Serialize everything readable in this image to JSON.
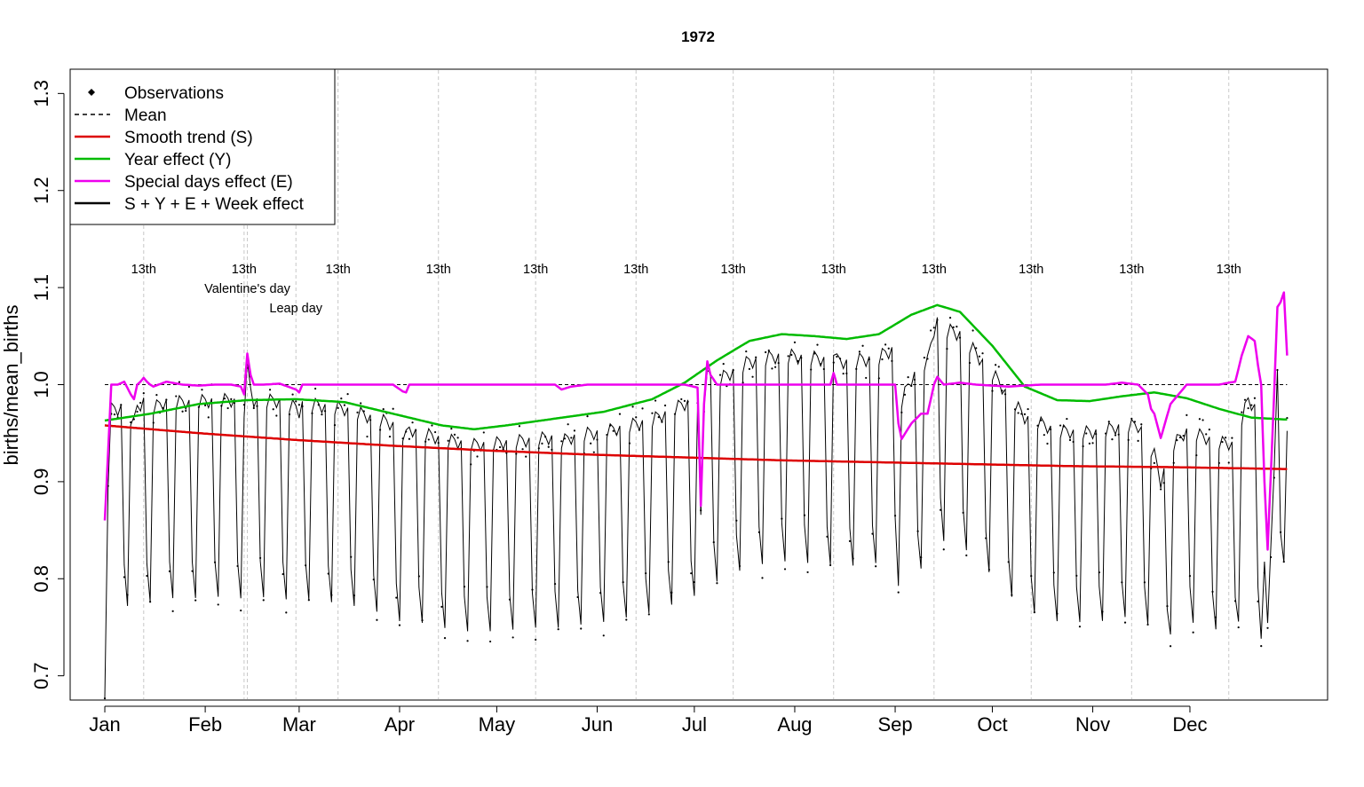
{
  "chart_data": {
    "type": "line",
    "title": "1972",
    "ylabel": "births/mean_births",
    "xlabel": "",
    "ylim": [
      0.675,
      1.325
    ],
    "y_ticks": [
      0.7,
      0.8,
      0.9,
      1.0,
      1.1,
      1.2,
      1.3
    ],
    "y_tick_labels": [
      "0.7",
      "0.8",
      "0.9",
      "1.0",
      "1.1",
      "1.2",
      "1.3"
    ],
    "x_unit": "day of year",
    "xlim": [
      -9.7,
      378.5
    ],
    "month_labels": [
      {
        "label": "Jan",
        "day": 1
      },
      {
        "label": "Feb",
        "day": 32
      },
      {
        "label": "Mar",
        "day": 61
      },
      {
        "label": "Apr",
        "day": 92
      },
      {
        "label": "May",
        "day": 122
      },
      {
        "label": "Jun",
        "day": 153
      },
      {
        "label": "Jul",
        "day": 183
      },
      {
        "label": "Aug",
        "day": 214
      },
      {
        "label": "Sep",
        "day": 245
      },
      {
        "label": "Oct",
        "day": 275
      },
      {
        "label": "Nov",
        "day": 306
      },
      {
        "label": "Dec",
        "day": 336
      }
    ],
    "special_day_lines": [
      13,
      44,
      45,
      60,
      73,
      104,
      134,
      165,
      195,
      226,
      257,
      287,
      318,
      348
    ],
    "annotations": [
      {
        "text": "13th",
        "day": 13,
        "level": 1
      },
      {
        "text": "13th",
        "day": 44,
        "level": 1
      },
      {
        "text": "13th",
        "day": 73,
        "level": 1
      },
      {
        "text": "13th",
        "day": 104,
        "level": 1
      },
      {
        "text": "13th",
        "day": 134,
        "level": 1
      },
      {
        "text": "13th",
        "day": 165,
        "level": 1
      },
      {
        "text": "13th",
        "day": 195,
        "level": 1
      },
      {
        "text": "13th",
        "day": 226,
        "level": 1
      },
      {
        "text": "13th",
        "day": 257,
        "level": 1
      },
      {
        "text": "13th",
        "day": 287,
        "level": 1
      },
      {
        "text": "13th",
        "day": 318,
        "level": 1
      },
      {
        "text": "13th",
        "day": 348,
        "level": 1
      },
      {
        "text": "Valentine's day",
        "day": 45,
        "level": 2
      },
      {
        "text": "Leap day",
        "day": 60,
        "level": 3
      }
    ],
    "mean_line": {
      "y": 1.0,
      "from_day": 1,
      "to_day": 366
    },
    "legend": {
      "position": "top-left",
      "entries": [
        {
          "name": "Observations",
          "style": "points",
          "color": "#000000"
        },
        {
          "name": "Mean",
          "style": "dashed",
          "color": "#000000"
        },
        {
          "name": "Smooth trend (S)",
          "style": "line",
          "color": "#dd0000"
        },
        {
          "name": "Year effect (Y)",
          "style": "line",
          "color": "#00bb00"
        },
        {
          "name": "Special days effect (E)",
          "style": "line",
          "color": "#ee00ee"
        },
        {
          "name": "S + Y + E + Week effect",
          "style": "line",
          "color": "#000000"
        }
      ]
    },
    "series": [
      {
        "name": "Smooth trend (S)",
        "color": "#dd0000",
        "x": [
          1,
          30,
          60,
          90,
          120,
          150,
          180,
          210,
          240,
          270,
          300,
          330,
          366
        ],
        "values": [
          0.958,
          0.95,
          0.943,
          0.937,
          0.932,
          0.928,
          0.925,
          0.922,
          0.92,
          0.918,
          0.916,
          0.915,
          0.913
        ]
      },
      {
        "name": "Year effect (Y)",
        "color": "#00bb00",
        "x": [
          1,
          15,
          30,
          45,
          60,
          75,
          90,
          105,
          115,
          125,
          140,
          155,
          170,
          180,
          190,
          200,
          210,
          220,
          230,
          240,
          250,
          258,
          265,
          275,
          285,
          295,
          305,
          315,
          325,
          335,
          345,
          355,
          366
        ],
        "values": [
          0.963,
          0.97,
          0.98,
          0.984,
          0.985,
          0.982,
          0.97,
          0.958,
          0.954,
          0.958,
          0.965,
          0.972,
          0.985,
          1.002,
          1.025,
          1.045,
          1.052,
          1.05,
          1.047,
          1.052,
          1.072,
          1.082,
          1.075,
          1.04,
          0.998,
          0.984,
          0.983,
          0.988,
          0.992,
          0.986,
          0.975,
          0.966,
          0.964
        ]
      },
      {
        "name": "Special days effect (E)",
        "color": "#ee00ee",
        "x": [
          1,
          2,
          3,
          5,
          7,
          9,
          10,
          11,
          12,
          13,
          14,
          15,
          16,
          20,
          25,
          30,
          35,
          40,
          43,
          44,
          45,
          46,
          47,
          50,
          55,
          60,
          61,
          62,
          65,
          70,
          75,
          80,
          90,
          93,
          94,
          95,
          100,
          110,
          120,
          130,
          140,
          142,
          145,
          150,
          160,
          170,
          180,
          184,
          185,
          186,
          187,
          188,
          190,
          195,
          200,
          210,
          220,
          225,
          226,
          227,
          230,
          240,
          245,
          246,
          247,
          250,
          253,
          255,
          257,
          258,
          260,
          265,
          270,
          280,
          290,
          300,
          310,
          315,
          320,
          323,
          324,
          325,
          327,
          330,
          335,
          340,
          345,
          348,
          350,
          352,
          354,
          356,
          357,
          358,
          359,
          360,
          362,
          363,
          364,
          365,
          366
        ],
        "values": [
          0.86,
          0.93,
          1.0,
          1.0,
          1.003,
          0.99,
          0.985,
          1.0,
          1.003,
          1.007,
          1.003,
          1.0,
          0.998,
          1.003,
          1.0,
          0.999,
          1.0,
          1.0,
          0.998,
          0.99,
          1.032,
          1.01,
          1.0,
          1.0,
          1.001,
          0.995,
          0.992,
          1.0,
          1.0,
          1.0,
          1.0,
          1.0,
          1.0,
          0.993,
          0.992,
          1.0,
          1.0,
          1.0,
          1.0,
          1.0,
          1.0,
          0.995,
          0.998,
          1.0,
          1.0,
          1.0,
          1.0,
          0.997,
          0.875,
          0.98,
          1.024,
          1.01,
          1.0,
          1.0,
          1.0,
          1.0,
          1.0,
          1.0,
          1.012,
          1.0,
          1.0,
          1.0,
          1.0,
          0.96,
          0.944,
          0.96,
          0.97,
          0.97,
          1.0,
          1.008,
          1.0,
          1.002,
          1.0,
          0.998,
          1.0,
          1.0,
          1.0,
          1.002,
          1.0,
          0.99,
          0.975,
          0.97,
          0.945,
          0.98,
          1.0,
          1.0,
          1.0,
          1.002,
          1.003,
          1.03,
          1.05,
          1.045,
          1.02,
          1.0,
          0.9,
          0.83,
          0.99,
          1.08,
          1.085,
          1.095,
          1.03
        ]
      },
      {
        "name": "S + Y + E + Week effect",
        "color": "#000000",
        "weekday_pattern_from_day": 1,
        "weekday_factors": [
          0.84,
          1.05,
          1.065,
          1.06,
          1.05,
          1.06,
          0.88
        ]
      }
    ],
    "observations_note": "daily points scattered around the black fitted line"
  }
}
